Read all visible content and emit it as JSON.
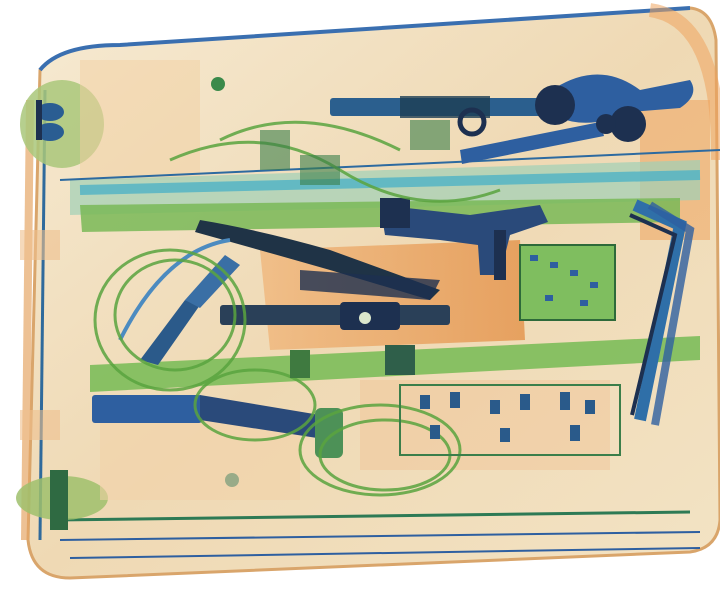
{
  "image": {
    "kind": "x-ray baggage scan",
    "palette": {
      "background": "#ffffff",
      "organic_orange": "#e89a55",
      "light_tan": "#f3e4c8",
      "mixed_green": "#6cb04a",
      "dark_green": "#3f8a2c",
      "inorganic_blue": "#2e5fa0",
      "dense_navy": "#1d3050",
      "cyan_bar": "#4fb3c6"
    },
    "objects": [
      {
        "name": "suitcase-frame-icon"
      },
      {
        "name": "suitcase-handle-icon"
      },
      {
        "name": "wheel-icon"
      },
      {
        "name": "spanner-icon"
      },
      {
        "name": "wrench-icon"
      },
      {
        "name": "handgun-icon"
      },
      {
        "name": "pliers-icon"
      },
      {
        "name": "coiled-cable-icon"
      },
      {
        "name": "circuit-board-icon"
      },
      {
        "name": "metal-rod-icon"
      },
      {
        "name": "bent-tube-icon"
      },
      {
        "name": "cutting-tool-icon"
      },
      {
        "name": "clamp-icon"
      }
    ]
  }
}
